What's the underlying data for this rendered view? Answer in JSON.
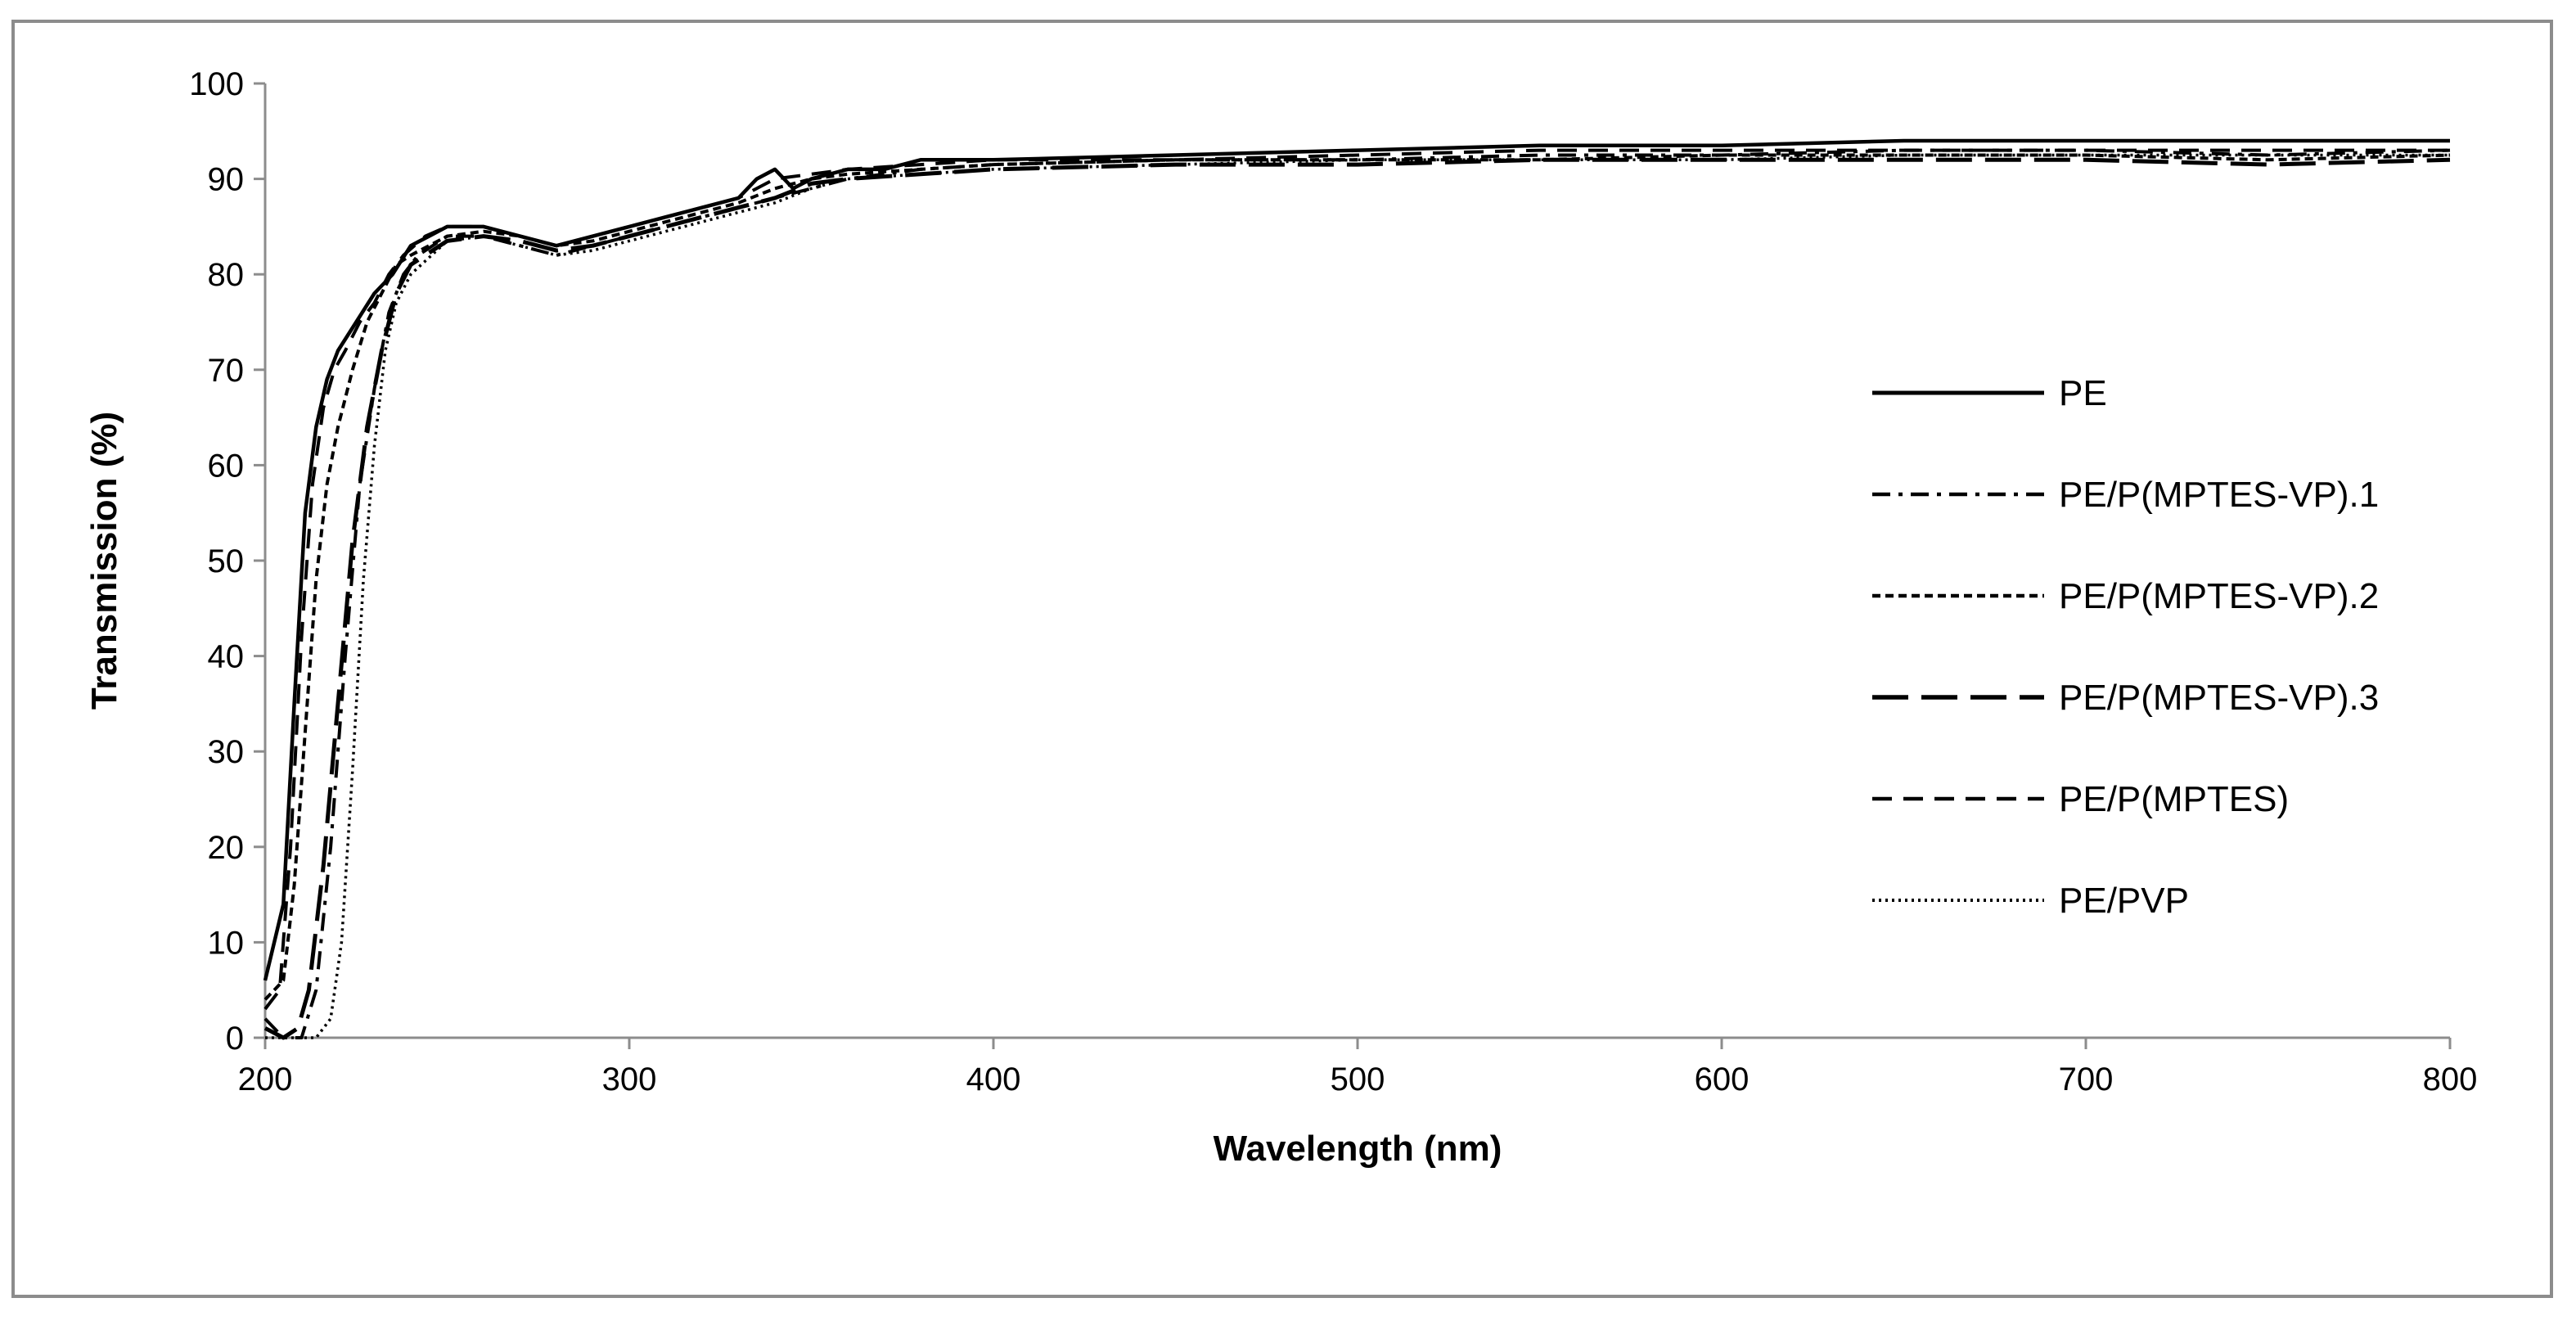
{
  "chart_data": {
    "type": "line",
    "title": "",
    "xlabel": "Wavelength (nm)",
    "ylabel": "Transmission (%)",
    "xlim": [
      200,
      800
    ],
    "ylim": [
      0,
      100
    ],
    "xticks": [
      200,
      300,
      400,
      500,
      600,
      700,
      800
    ],
    "yticks": [
      0,
      10,
      20,
      30,
      40,
      50,
      60,
      70,
      80,
      90,
      100
    ],
    "grid": false,
    "legend_position": "right",
    "series": [
      {
        "name": "PE",
        "style": "solid",
        "points": [
          [
            200,
            6
          ],
          [
            205,
            14
          ],
          [
            208,
            35
          ],
          [
            211,
            55
          ],
          [
            214,
            64
          ],
          [
            217,
            69
          ],
          [
            220,
            72
          ],
          [
            225,
            75
          ],
          [
            230,
            78
          ],
          [
            235,
            80
          ],
          [
            240,
            83
          ],
          [
            245,
            84
          ],
          [
            250,
            85
          ],
          [
            260,
            85
          ],
          [
            270,
            84
          ],
          [
            280,
            83
          ],
          [
            290,
            84
          ],
          [
            300,
            85
          ],
          [
            310,
            86
          ],
          [
            320,
            87
          ],
          [
            330,
            88
          ],
          [
            335,
            90
          ],
          [
            340,
            91
          ],
          [
            345,
            89
          ],
          [
            350,
            90
          ],
          [
            360,
            91
          ],
          [
            370,
            91
          ],
          [
            380,
            92
          ],
          [
            400,
            92
          ],
          [
            450,
            92.5
          ],
          [
            500,
            93
          ],
          [
            550,
            93.5
          ],
          [
            600,
            93.5
          ],
          [
            650,
            94
          ],
          [
            700,
            94
          ],
          [
            750,
            94
          ],
          [
            800,
            94
          ]
        ]
      },
      {
        "name": "PE/P(MPTES-VP).1",
        "style": "dashdot",
        "points": [
          [
            200,
            2
          ],
          [
            205,
            0
          ],
          [
            210,
            0
          ],
          [
            214,
            5
          ],
          [
            218,
            20
          ],
          [
            222,
            40
          ],
          [
            226,
            58
          ],
          [
            230,
            68
          ],
          [
            234,
            76
          ],
          [
            238,
            80
          ],
          [
            242,
            82
          ],
          [
            250,
            84
          ],
          [
            260,
            84
          ],
          [
            270,
            83
          ],
          [
            280,
            82
          ],
          [
            290,
            83
          ],
          [
            300,
            84
          ],
          [
            310,
            85
          ],
          [
            320,
            86
          ],
          [
            330,
            87
          ],
          [
            340,
            88
          ],
          [
            350,
            89
          ],
          [
            360,
            90
          ],
          [
            380,
            91
          ],
          [
            400,
            91.5
          ],
          [
            450,
            92
          ],
          [
            500,
            92
          ],
          [
            550,
            92.5
          ],
          [
            600,
            92.5
          ],
          [
            650,
            93
          ],
          [
            700,
            93
          ],
          [
            750,
            92.5
          ],
          [
            800,
            93
          ]
        ]
      },
      {
        "name": "PE/P(MPTES-VP).2",
        "style": "short-dash",
        "points": [
          [
            200,
            4
          ],
          [
            205,
            6
          ],
          [
            208,
            16
          ],
          [
            211,
            32
          ],
          [
            214,
            48
          ],
          [
            217,
            58
          ],
          [
            220,
            64
          ],
          [
            224,
            70
          ],
          [
            228,
            75
          ],
          [
            232,
            78
          ],
          [
            236,
            81
          ],
          [
            240,
            82
          ],
          [
            250,
            84
          ],
          [
            260,
            84.5
          ],
          [
            270,
            84
          ],
          [
            280,
            83
          ],
          [
            290,
            83.5
          ],
          [
            300,
            84.5
          ],
          [
            310,
            85.5
          ],
          [
            320,
            86.5
          ],
          [
            330,
            87.5
          ],
          [
            340,
            89
          ],
          [
            350,
            90
          ],
          [
            360,
            90.5
          ],
          [
            380,
            91
          ],
          [
            400,
            91.5
          ],
          [
            450,
            92
          ],
          [
            500,
            92
          ],
          [
            550,
            92
          ],
          [
            600,
            92.5
          ],
          [
            650,
            92.5
          ],
          [
            700,
            92.5
          ],
          [
            750,
            92
          ],
          [
            800,
            92.5
          ]
        ]
      },
      {
        "name": "PE/P(MPTES-VP).3",
        "style": "long-dash",
        "points": [
          [
            200,
            1
          ],
          [
            205,
            0
          ],
          [
            209,
            1
          ],
          [
            212,
            5
          ],
          [
            216,
            18
          ],
          [
            220,
            35
          ],
          [
            224,
            52
          ],
          [
            228,
            64
          ],
          [
            232,
            72
          ],
          [
            236,
            78
          ],
          [
            240,
            81
          ],
          [
            250,
            83.5
          ],
          [
            260,
            84
          ],
          [
            270,
            83.5
          ],
          [
            280,
            82.5
          ],
          [
            290,
            83
          ],
          [
            300,
            84
          ],
          [
            310,
            85
          ],
          [
            320,
            86
          ],
          [
            330,
            87
          ],
          [
            340,
            88
          ],
          [
            350,
            89.5
          ],
          [
            360,
            90
          ],
          [
            380,
            90.5
          ],
          [
            400,
            91
          ],
          [
            450,
            91.5
          ],
          [
            500,
            91.5
          ],
          [
            550,
            92
          ],
          [
            600,
            92
          ],
          [
            650,
            92
          ],
          [
            700,
            92
          ],
          [
            750,
            91.5
          ],
          [
            800,
            92
          ]
        ]
      },
      {
        "name": "PE/P(MPTES)",
        "style": "dash",
        "points": [
          [
            200,
            3
          ],
          [
            204,
            5
          ],
          [
            207,
            20
          ],
          [
            210,
            42
          ],
          [
            213,
            58
          ],
          [
            216,
            66
          ],
          [
            219,
            70
          ],
          [
            222,
            72
          ],
          [
            226,
            75
          ],
          [
            230,
            77
          ],
          [
            234,
            80
          ],
          [
            238,
            82
          ],
          [
            244,
            84
          ],
          [
            250,
            85
          ],
          [
            260,
            85
          ],
          [
            270,
            84
          ],
          [
            280,
            83
          ],
          [
            290,
            84
          ],
          [
            300,
            85
          ],
          [
            310,
            86
          ],
          [
            320,
            87
          ],
          [
            330,
            88
          ],
          [
            340,
            90
          ],
          [
            350,
            90.5
          ],
          [
            360,
            91
          ],
          [
            380,
            91.5
          ],
          [
            400,
            92
          ],
          [
            450,
            92
          ],
          [
            500,
            92.5
          ],
          [
            550,
            93
          ],
          [
            600,
            93
          ],
          [
            650,
            93
          ],
          [
            700,
            93
          ],
          [
            750,
            93
          ],
          [
            800,
            93
          ]
        ]
      },
      {
        "name": "PE/PVP",
        "style": "dotted",
        "points": [
          [
            200,
            0
          ],
          [
            210,
            0
          ],
          [
            214,
            0
          ],
          [
            218,
            2
          ],
          [
            221,
            10
          ],
          [
            224,
            28
          ],
          [
            227,
            48
          ],
          [
            230,
            62
          ],
          [
            233,
            72
          ],
          [
            236,
            77
          ],
          [
            240,
            80
          ],
          [
            250,
            83.5
          ],
          [
            260,
            84
          ],
          [
            270,
            83
          ],
          [
            280,
            82
          ],
          [
            290,
            82.5
          ],
          [
            300,
            83.5
          ],
          [
            310,
            84.5
          ],
          [
            320,
            85.5
          ],
          [
            330,
            86.5
          ],
          [
            340,
            87.5
          ],
          [
            350,
            89
          ],
          [
            360,
            90
          ],
          [
            380,
            90.5
          ],
          [
            400,
            91
          ],
          [
            450,
            91.5
          ],
          [
            500,
            92
          ],
          [
            550,
            92
          ],
          [
            600,
            92
          ],
          [
            650,
            92.5
          ],
          [
            700,
            92.5
          ],
          [
            750,
            92.5
          ],
          [
            800,
            92.5
          ]
        ]
      }
    ]
  }
}
